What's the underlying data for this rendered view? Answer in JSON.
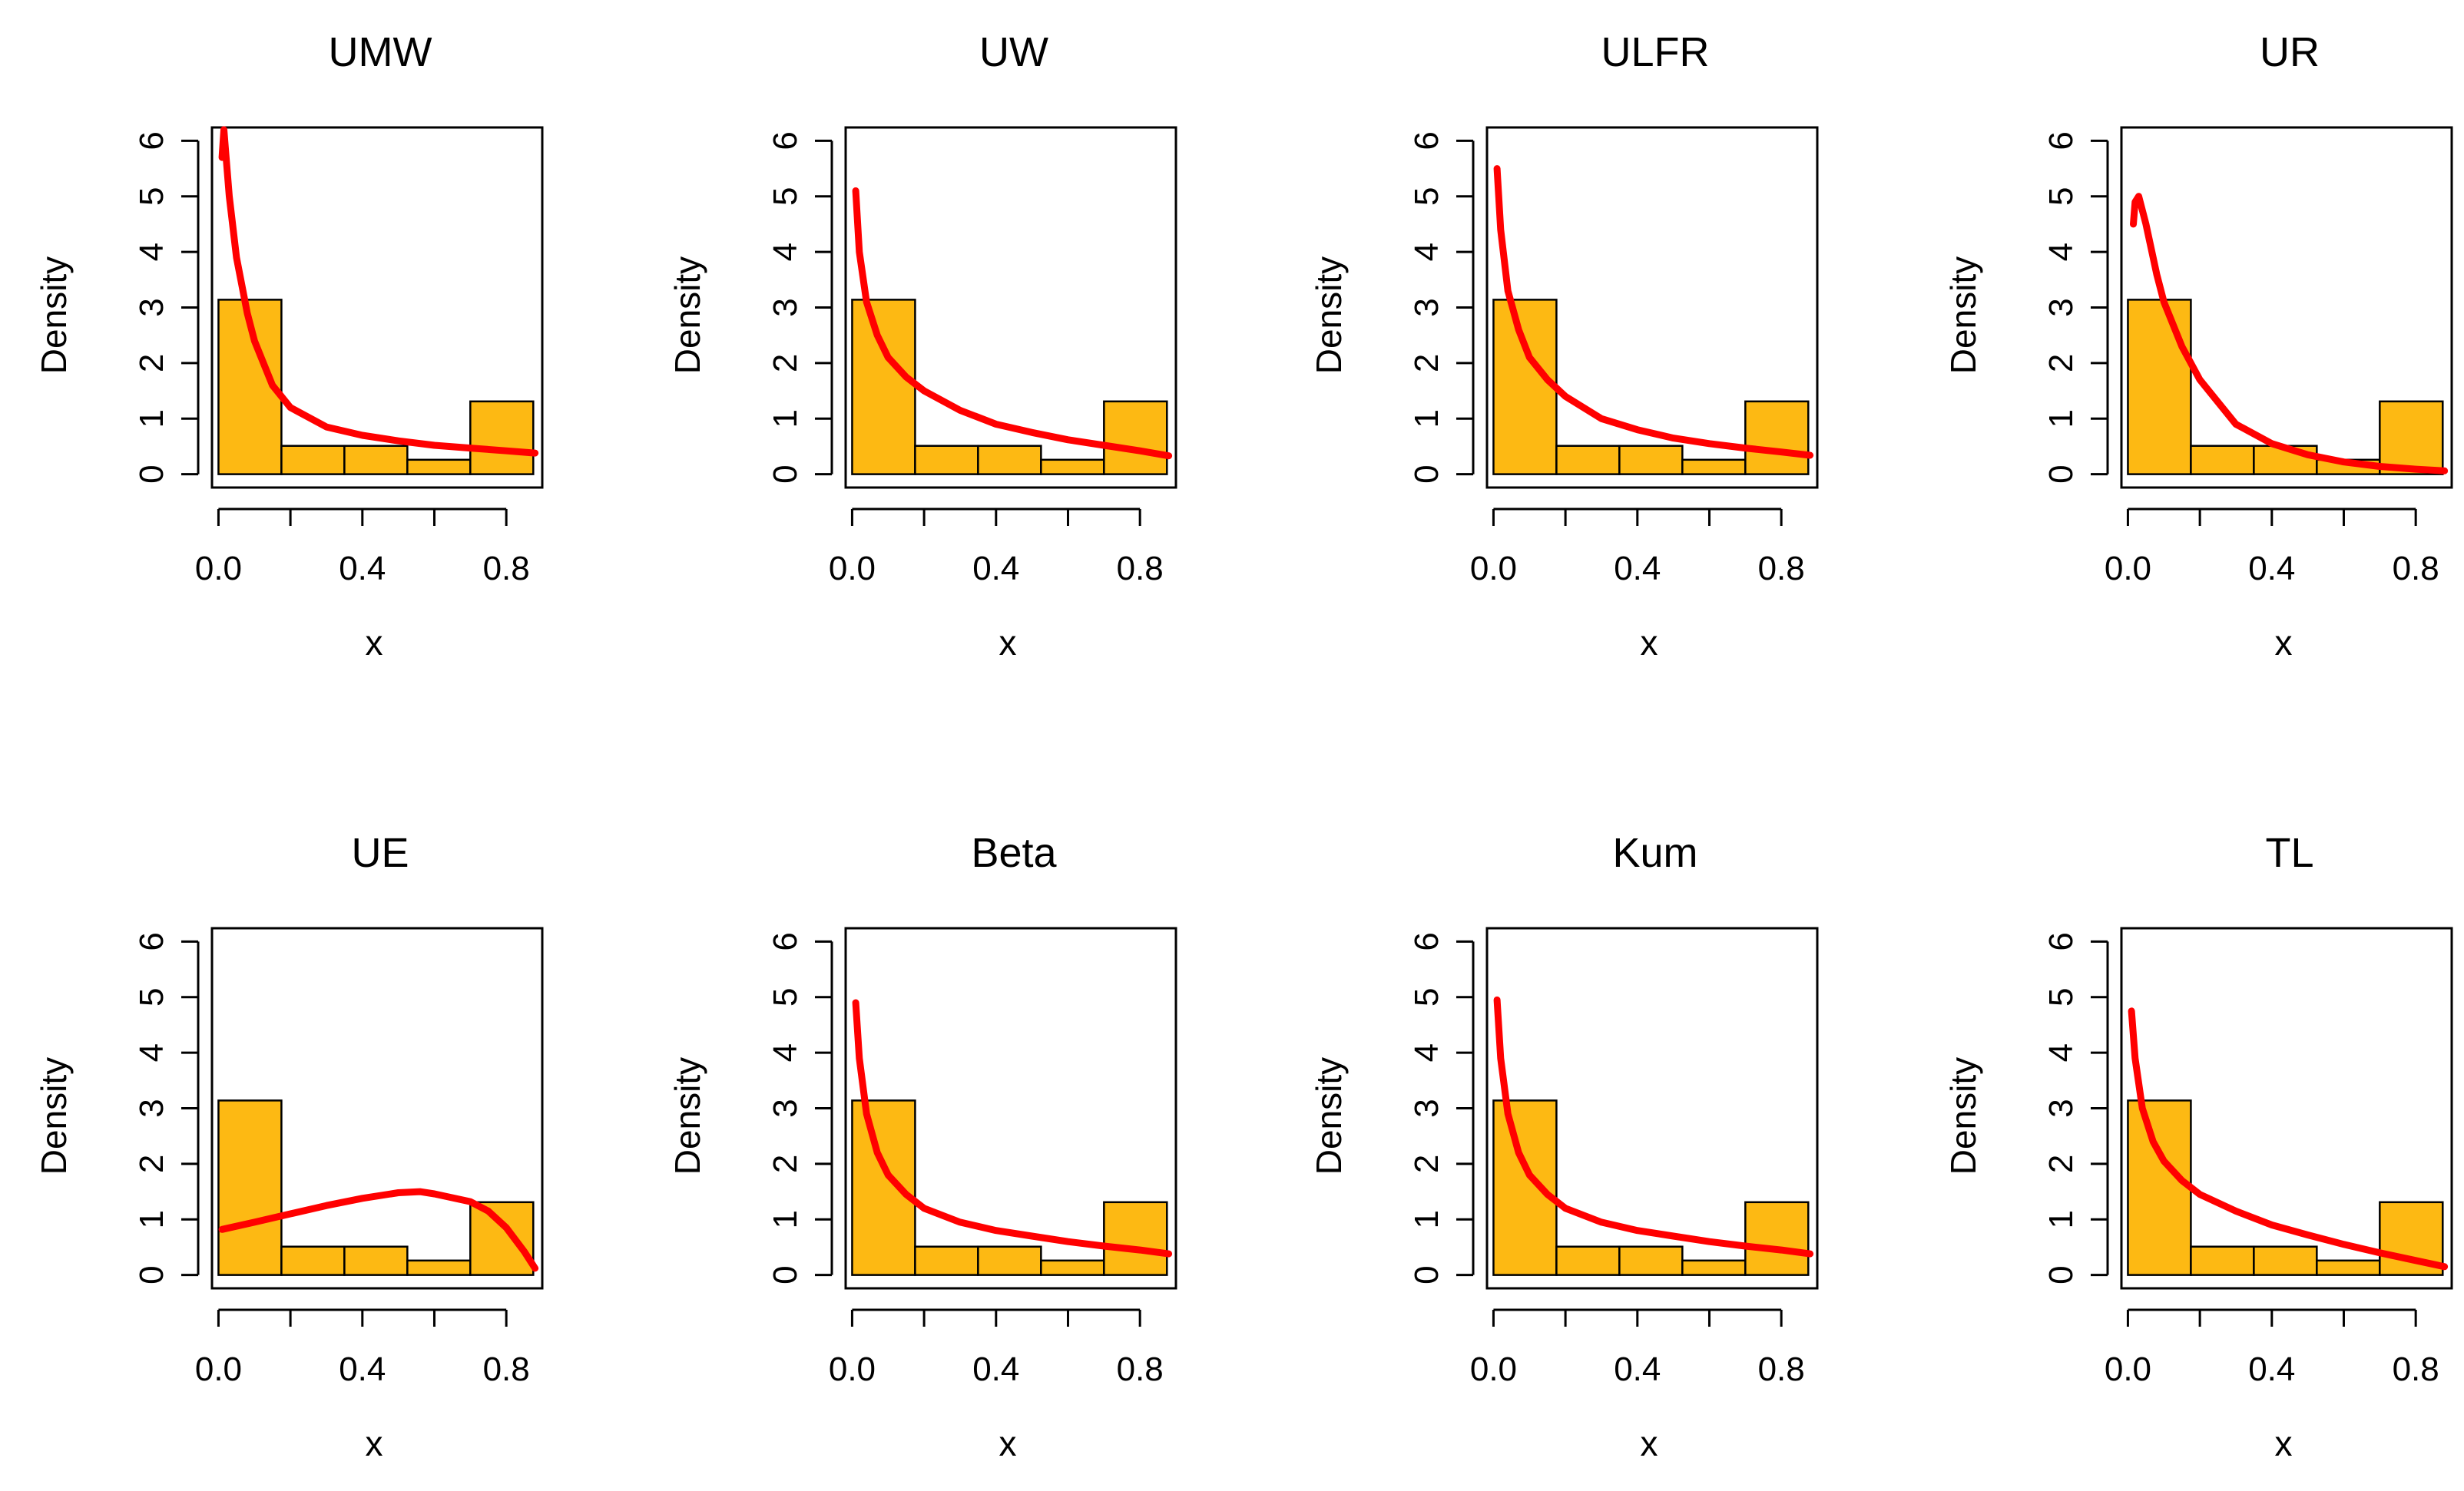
{
  "figure": {
    "title": "",
    "layout": "2 rows x 4 columns of histograms with fitted density curves"
  },
  "colors": {
    "bar_fill": "#FDB913",
    "bar_stroke": "#000000",
    "curve": "#FF0000",
    "axis": "#000000"
  },
  "chart_data": [
    {
      "type": "bar",
      "title": "UMW",
      "xlabel": "x",
      "ylabel": "Density",
      "xlim": [
        0,
        0.9
      ],
      "ylim": [
        0,
        6
      ],
      "x_ticks": [
        "0.0",
        "0.4",
        "0.8"
      ],
      "y_ticks": [
        "0",
        "1",
        "2",
        "3",
        "4",
        "5",
        "6"
      ],
      "bins": [
        [
          0.0,
          0.175
        ],
        [
          0.175,
          0.35
        ],
        [
          0.35,
          0.525
        ],
        [
          0.525,
          0.7
        ],
        [
          0.7,
          0.875
        ]
      ],
      "values": [
        3.14,
        0.51,
        0.51,
        0.26,
        1.31
      ],
      "series": [
        {
          "name": "fitted density",
          "x": [
            0.01,
            0.015,
            0.02,
            0.03,
            0.05,
            0.08,
            0.1,
            0.15,
            0.2,
            0.3,
            0.4,
            0.5,
            0.6,
            0.7,
            0.8,
            0.88
          ],
          "values": [
            5.7,
            6.2,
            5.8,
            5.0,
            3.9,
            2.9,
            2.4,
            1.6,
            1.2,
            0.85,
            0.7,
            0.6,
            0.52,
            0.47,
            0.42,
            0.38
          ]
        }
      ]
    },
    {
      "type": "bar",
      "title": "UW",
      "xlabel": "x",
      "ylabel": "Density",
      "xlim": [
        0,
        0.9
      ],
      "ylim": [
        0,
        6
      ],
      "x_ticks": [
        "0.0",
        "0.4",
        "0.8"
      ],
      "y_ticks": [
        "0",
        "1",
        "2",
        "3",
        "4",
        "5",
        "6"
      ],
      "bins": [
        [
          0.0,
          0.175
        ],
        [
          0.175,
          0.35
        ],
        [
          0.35,
          0.525
        ],
        [
          0.525,
          0.7
        ],
        [
          0.7,
          0.875
        ]
      ],
      "values": [
        3.14,
        0.51,
        0.51,
        0.26,
        1.31
      ],
      "series": [
        {
          "name": "fitted density",
          "x": [
            0.01,
            0.02,
            0.04,
            0.07,
            0.1,
            0.15,
            0.2,
            0.3,
            0.4,
            0.5,
            0.6,
            0.7,
            0.8,
            0.88
          ],
          "values": [
            5.1,
            4.0,
            3.1,
            2.5,
            2.1,
            1.75,
            1.5,
            1.15,
            0.9,
            0.75,
            0.62,
            0.52,
            0.42,
            0.33
          ]
        }
      ]
    },
    {
      "type": "bar",
      "title": "ULFR",
      "xlabel": "x",
      "ylabel": "Density",
      "xlim": [
        0,
        0.9
      ],
      "ylim": [
        0,
        6
      ],
      "x_ticks": [
        "0.0",
        "0.4",
        "0.8"
      ],
      "y_ticks": [
        "0",
        "1",
        "2",
        "3",
        "4",
        "5",
        "6"
      ],
      "bins": [
        [
          0.0,
          0.175
        ],
        [
          0.175,
          0.35
        ],
        [
          0.35,
          0.525
        ],
        [
          0.525,
          0.7
        ],
        [
          0.7,
          0.875
        ]
      ],
      "values": [
        3.14,
        0.51,
        0.51,
        0.26,
        1.31
      ],
      "series": [
        {
          "name": "fitted density",
          "x": [
            0.01,
            0.02,
            0.04,
            0.07,
            0.1,
            0.15,
            0.2,
            0.3,
            0.4,
            0.5,
            0.6,
            0.7,
            0.8,
            0.88
          ],
          "values": [
            5.5,
            4.4,
            3.3,
            2.6,
            2.1,
            1.7,
            1.4,
            1.0,
            0.8,
            0.65,
            0.55,
            0.47,
            0.4,
            0.34
          ]
        }
      ]
    },
    {
      "type": "bar",
      "title": "UR",
      "xlabel": "x",
      "ylabel": "Density",
      "xlim": [
        0,
        0.9
      ],
      "ylim": [
        0,
        6
      ],
      "x_ticks": [
        "0.0",
        "0.4",
        "0.8"
      ],
      "y_ticks": [
        "0",
        "1",
        "2",
        "3",
        "4",
        "5",
        "6"
      ],
      "bins": [
        [
          0.0,
          0.175
        ],
        [
          0.175,
          0.35
        ],
        [
          0.35,
          0.525
        ],
        [
          0.525,
          0.7
        ],
        [
          0.7,
          0.875
        ]
      ],
      "values": [
        3.14,
        0.51,
        0.51,
        0.26,
        1.31
      ],
      "series": [
        {
          "name": "fitted density",
          "x": [
            0.015,
            0.02,
            0.03,
            0.05,
            0.08,
            0.1,
            0.15,
            0.2,
            0.3,
            0.4,
            0.5,
            0.6,
            0.7,
            0.8,
            0.88
          ],
          "values": [
            4.5,
            4.9,
            5.0,
            4.5,
            3.6,
            3.1,
            2.3,
            1.7,
            0.9,
            0.55,
            0.35,
            0.22,
            0.14,
            0.09,
            0.06
          ]
        }
      ]
    },
    {
      "type": "bar",
      "title": "UE",
      "xlabel": "x",
      "ylabel": "Density",
      "xlim": [
        0,
        0.9
      ],
      "ylim": [
        0,
        6
      ],
      "x_ticks": [
        "0.0",
        "0.4",
        "0.8"
      ],
      "y_ticks": [
        "0",
        "1",
        "2",
        "3",
        "4",
        "5",
        "6"
      ],
      "bins": [
        [
          0.0,
          0.175
        ],
        [
          0.175,
          0.35
        ],
        [
          0.35,
          0.525
        ],
        [
          0.525,
          0.7
        ],
        [
          0.7,
          0.875
        ]
      ],
      "values": [
        3.14,
        0.51,
        0.51,
        0.26,
        1.31
      ],
      "series": [
        {
          "name": "fitted density",
          "x": [
            0.01,
            0.1,
            0.2,
            0.3,
            0.4,
            0.5,
            0.56,
            0.6,
            0.7,
            0.75,
            0.8,
            0.85,
            0.88
          ],
          "values": [
            0.82,
            0.95,
            1.1,
            1.25,
            1.38,
            1.48,
            1.5,
            1.46,
            1.32,
            1.15,
            0.85,
            0.42,
            0.12
          ]
        }
      ]
    },
    {
      "type": "bar",
      "title": "Beta",
      "xlabel": "x",
      "ylabel": "Density",
      "xlim": [
        0,
        0.9
      ],
      "ylim": [
        0,
        6
      ],
      "x_ticks": [
        "0.0",
        "0.4",
        "0.8"
      ],
      "y_ticks": [
        "0",
        "1",
        "2",
        "3",
        "4",
        "5",
        "6"
      ],
      "bins": [
        [
          0.0,
          0.175
        ],
        [
          0.175,
          0.35
        ],
        [
          0.35,
          0.525
        ],
        [
          0.525,
          0.7
        ],
        [
          0.7,
          0.875
        ]
      ],
      "values": [
        3.14,
        0.51,
        0.51,
        0.26,
        1.31
      ],
      "series": [
        {
          "name": "fitted density",
          "x": [
            0.01,
            0.02,
            0.04,
            0.07,
            0.1,
            0.15,
            0.2,
            0.3,
            0.4,
            0.5,
            0.6,
            0.7,
            0.8,
            0.88
          ],
          "values": [
            4.9,
            3.9,
            2.9,
            2.2,
            1.8,
            1.45,
            1.2,
            0.95,
            0.8,
            0.7,
            0.6,
            0.52,
            0.45,
            0.38
          ]
        }
      ]
    },
    {
      "type": "bar",
      "title": "Kum",
      "xlabel": "x",
      "ylabel": "Density",
      "xlim": [
        0,
        0.9
      ],
      "ylim": [
        0,
        6
      ],
      "x_ticks": [
        "0.0",
        "0.4",
        "0.8"
      ],
      "y_ticks": [
        "0",
        "1",
        "2",
        "3",
        "4",
        "5",
        "6"
      ],
      "bins": [
        [
          0.0,
          0.175
        ],
        [
          0.175,
          0.35
        ],
        [
          0.35,
          0.525
        ],
        [
          0.525,
          0.7
        ],
        [
          0.7,
          0.875
        ]
      ],
      "values": [
        3.14,
        0.51,
        0.51,
        0.26,
        1.31
      ],
      "series": [
        {
          "name": "fitted density",
          "x": [
            0.01,
            0.02,
            0.04,
            0.07,
            0.1,
            0.15,
            0.2,
            0.3,
            0.4,
            0.5,
            0.6,
            0.7,
            0.8,
            0.88
          ],
          "values": [
            4.95,
            3.9,
            2.9,
            2.2,
            1.8,
            1.45,
            1.2,
            0.95,
            0.8,
            0.7,
            0.6,
            0.52,
            0.45,
            0.38
          ]
        }
      ]
    },
    {
      "type": "bar",
      "title": "TL",
      "xlabel": "x",
      "ylabel": "Density",
      "xlim": [
        0,
        0.9
      ],
      "ylim": [
        0,
        6
      ],
      "x_ticks": [
        "0.0",
        "0.4",
        "0.8"
      ],
      "y_ticks": [
        "0",
        "1",
        "2",
        "3",
        "4",
        "5",
        "6"
      ],
      "bins": [
        [
          0.0,
          0.175
        ],
        [
          0.175,
          0.35
        ],
        [
          0.35,
          0.525
        ],
        [
          0.525,
          0.7
        ],
        [
          0.7,
          0.875
        ]
      ],
      "values": [
        3.14,
        0.51,
        0.51,
        0.26,
        1.31
      ],
      "series": [
        {
          "name": "fitted density",
          "x": [
            0.01,
            0.02,
            0.04,
            0.07,
            0.1,
            0.15,
            0.2,
            0.3,
            0.4,
            0.5,
            0.6,
            0.7,
            0.8,
            0.88
          ],
          "values": [
            4.75,
            3.9,
            3.0,
            2.4,
            2.05,
            1.7,
            1.45,
            1.15,
            0.9,
            0.72,
            0.55,
            0.4,
            0.26,
            0.15
          ]
        }
      ]
    }
  ]
}
